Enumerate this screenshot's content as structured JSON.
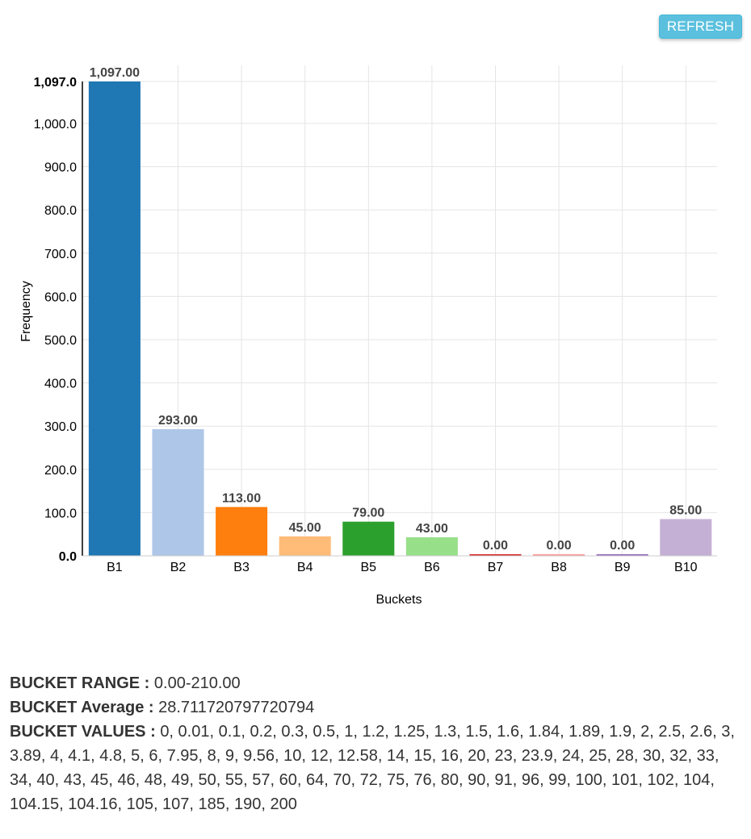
{
  "refresh_label": "REFRESH",
  "chart_data": {
    "type": "bar",
    "categories": [
      "B1",
      "B2",
      "B3",
      "B4",
      "B5",
      "B6",
      "B7",
      "B8",
      "B9",
      "B10"
    ],
    "values": [
      1097,
      293,
      113,
      45,
      79,
      43,
      0,
      0,
      0,
      85
    ],
    "data_labels": [
      "1,097.00",
      "293.00",
      "113.00",
      "45.00",
      "79.00",
      "43.00",
      "0.00",
      "0.00",
      "0.00",
      "85.00"
    ],
    "colors": [
      "#1f77b4",
      "#aec7e8",
      "#ff7f0e",
      "#ffbb78",
      "#2ca02c",
      "#98df8a",
      "#d62728",
      "#ff9896",
      "#9467bd",
      "#c5b0d5"
    ],
    "xlabel": "Buckets",
    "ylabel": "Frequency",
    "ylim": [
      0,
      1097
    ],
    "yticks": [
      0,
      100,
      200,
      300,
      400,
      500,
      600,
      700,
      800,
      900,
      1000,
      1097
    ],
    "ytick_labels": [
      "0.0",
      "100.0",
      "200.0",
      "300.0",
      "400.0",
      "500.0",
      "600.0",
      "700.0",
      "800.0",
      "900.0",
      "1,000.0",
      "1,097.0"
    ],
    "grid": true
  },
  "info": {
    "range_key": "BUCKET RANGE :",
    "range_value": "0.00-210.00",
    "average_key": "BUCKET Average :",
    "average_value": "28.711720797720794",
    "values_key": "BUCKET VALUES :",
    "values_value": "0, 0.01, 0.1, 0.2, 0.3, 0.5, 1, 1.2, 1.25, 1.3, 1.5, 1.6, 1.84, 1.89, 1.9, 2, 2.5, 2.6, 3, 3.89, 4, 4.1, 4.8, 5, 6, 7.95, 8, 9, 9.56, 10, 12, 12.58, 14, 15, 16, 20, 23, 23.9, 24, 25, 28, 30, 32, 33, 34, 40, 43, 45, 46, 48, 49, 50, 55, 57, 60, 64, 70, 72, 75, 76, 80, 90, 91, 96, 99, 100, 101, 102, 104, 104.15, 104.16, 105, 107, 185, 190, 200"
  }
}
